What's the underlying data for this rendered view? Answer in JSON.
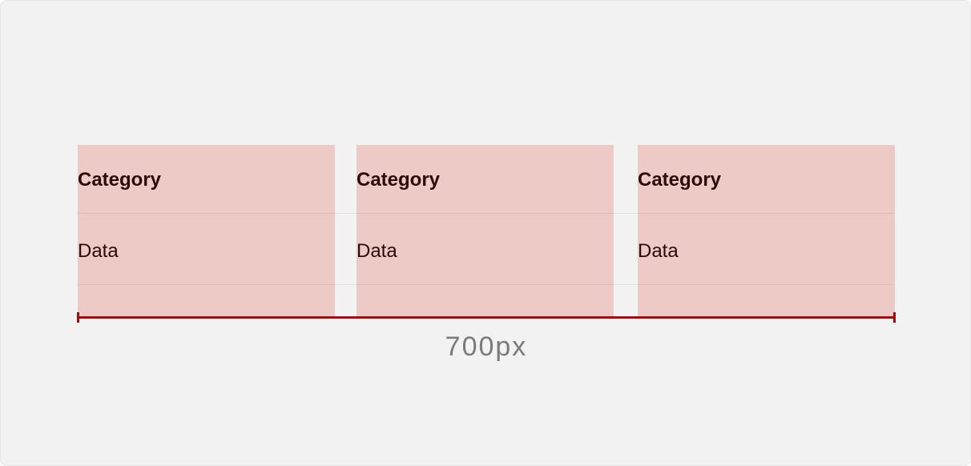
{
  "columns": [
    {
      "header": "Category",
      "cell": "Data"
    },
    {
      "header": "Category",
      "cell": "Data"
    },
    {
      "header": "Category",
      "cell": "Data"
    }
  ],
  "measurement": {
    "label": "700px"
  },
  "colors": {
    "background": "#f2f2f2",
    "column_fill": "#eecac7",
    "text": "#2b0a0a",
    "measure_line": "#9a0e14",
    "measure_label": "#7a7a7a"
  }
}
